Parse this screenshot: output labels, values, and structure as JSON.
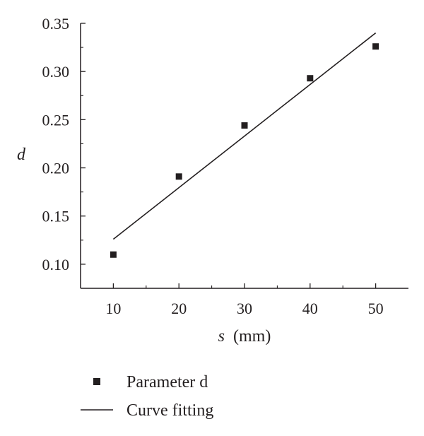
{
  "chart_data": {
    "type": "scatter",
    "title": "",
    "xlabel": {
      "var": "s",
      "unit": "(mm)"
    },
    "ylabel": "d",
    "xlim": [
      5,
      55
    ],
    "ylim": [
      0.075,
      0.35
    ],
    "xticks": [
      10,
      20,
      30,
      40,
      50
    ],
    "yticks": [
      0.1,
      0.15,
      0.2,
      0.25,
      0.3,
      0.35
    ],
    "yticks_minor": [
      0.125,
      0.175,
      0.225,
      0.275,
      0.325
    ],
    "xticks_minor": [
      15,
      25,
      35,
      45
    ],
    "grid": false,
    "legend_position": "bottom",
    "series": [
      {
        "name": "Parameter d",
        "kind": "points",
        "marker": "square",
        "color": "#231f20",
        "x": [
          10,
          20,
          30,
          40,
          50
        ],
        "y": [
          0.11,
          0.191,
          0.244,
          0.293,
          0.326
        ]
      },
      {
        "name": "Curve fitting",
        "kind": "line",
        "color": "#231f20",
        "x": [
          10,
          50
        ],
        "y": [
          0.126,
          0.34
        ]
      }
    ]
  }
}
